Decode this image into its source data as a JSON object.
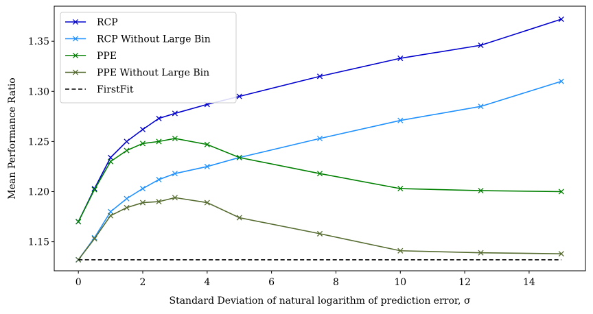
{
  "chart_data": {
    "type": "line",
    "title": "",
    "xlabel": "Standard Deviation of natural logarithm of prediction error, σ",
    "ylabel": "Mean Performance Ratio",
    "xlim": [
      -0.75,
      15.75
    ],
    "ylim": [
      1.121,
      1.385
    ],
    "xticks": [
      0,
      2,
      4,
      6,
      8,
      10,
      12,
      14
    ],
    "xtick_labels": [
      "0",
      "2",
      "4",
      "6",
      "8",
      "10",
      "12",
      "14"
    ],
    "yticks": [
      1.15,
      1.2,
      1.25,
      1.3,
      1.35
    ],
    "ytick_labels": [
      "1.15",
      "1.20",
      "1.25",
      "1.30",
      "1.35"
    ],
    "legend_position": "top-left",
    "series": [
      {
        "name": "RCP",
        "color": "#0000cd",
        "dashed": false,
        "marker": "x",
        "x": [
          0,
          0.5,
          1,
          1.5,
          2,
          2.5,
          3,
          4,
          5,
          7.5,
          10,
          12.5,
          15
        ],
        "values": [
          1.17,
          1.203,
          1.234,
          1.25,
          1.262,
          1.273,
          1.278,
          1.287,
          1.295,
          1.315,
          1.333,
          1.346,
          1.372
        ]
      },
      {
        "name": "RCP Without Large Bin",
        "color": "#1e90ff",
        "dashed": false,
        "marker": "x",
        "x": [
          0,
          0.5,
          1,
          1.5,
          2,
          2.5,
          3,
          4,
          5,
          7.5,
          10,
          12.5,
          15
        ],
        "values": [
          1.132,
          1.154,
          1.18,
          1.193,
          1.203,
          1.212,
          1.218,
          1.225,
          1.234,
          1.253,
          1.271,
          1.285,
          1.31
        ]
      },
      {
        "name": "PPE",
        "color": "#008000",
        "dashed": false,
        "marker": "x",
        "x": [
          0,
          0.5,
          1,
          1.5,
          2,
          2.5,
          3,
          4,
          5,
          7.5,
          10,
          12.5,
          15
        ],
        "values": [
          1.17,
          1.202,
          1.23,
          1.241,
          1.248,
          1.25,
          1.253,
          1.247,
          1.234,
          1.218,
          1.203,
          1.201,
          1.2
        ]
      },
      {
        "name": "PPE Without Large Bin",
        "color": "#556b2f",
        "dashed": false,
        "marker": "x",
        "x": [
          0,
          0.5,
          1,
          1.5,
          2,
          2.5,
          3,
          4,
          5,
          7.5,
          10,
          12.5,
          15
        ],
        "values": [
          1.132,
          1.153,
          1.176,
          1.184,
          1.189,
          1.19,
          1.194,
          1.189,
          1.174,
          1.158,
          1.141,
          1.139,
          1.138
        ]
      },
      {
        "name": "FirstFit",
        "color": "#000000",
        "dashed": true,
        "marker": "none",
        "x": [
          0,
          15
        ],
        "values": [
          1.132,
          1.132
        ]
      }
    ]
  }
}
